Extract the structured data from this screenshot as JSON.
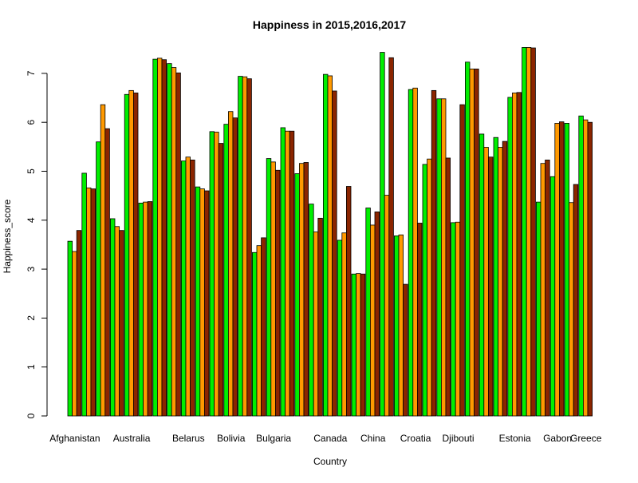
{
  "chart_data": {
    "type": "bar",
    "title": "Happiness in 2015,2016,2017",
    "xlabel": "Country",
    "ylabel": "Happiness_score",
    "ylim": [
      0,
      7.6
    ],
    "yticks": [
      0,
      1,
      2,
      3,
      4,
      5,
      6,
      7
    ],
    "legend": "none",
    "grid": false,
    "series_colors": [
      "#00ee00",
      "#ff9900",
      "#8b2500"
    ],
    "group_count": 37,
    "shown_category_labels": [
      {
        "group": 0,
        "label": "Afghanistan"
      },
      {
        "group": 4,
        "label": "Australia"
      },
      {
        "group": 8,
        "label": "Belarus"
      },
      {
        "group": 11,
        "label": "Bolivia"
      },
      {
        "group": 14,
        "label": "Bulgaria"
      },
      {
        "group": 18,
        "label": "Canada"
      },
      {
        "group": 21,
        "label": "China"
      },
      {
        "group": 24,
        "label": "Croatia"
      },
      {
        "group": 27,
        "label": "Djibouti"
      },
      {
        "group": 31,
        "label": "Estonia"
      },
      {
        "group": 34,
        "label": "Gabon"
      },
      {
        "group": 36,
        "label": "Greece"
      }
    ],
    "series": [
      {
        "values": [
          3.57,
          4.96,
          5.6,
          4.03,
          6.57,
          4.35,
          7.29,
          7.2,
          5.21,
          4.68,
          5.81,
          5.96,
          6.94,
          3.34,
          5.26,
          5.89,
          4.95,
          4.33,
          6.98,
          3.59,
          2.9,
          4.25,
          7.43,
          3.68,
          6.67,
          5.14,
          6.48,
          3.95,
          7.23,
          5.76,
          5.69,
          6.51,
          7.53,
          4.37,
          4.89,
          5.98,
          6.13
        ]
      },
      {
        "values": [
          3.36,
          4.66,
          6.36,
          3.87,
          6.65,
          4.37,
          7.31,
          7.12,
          5.29,
          4.64,
          5.8,
          6.22,
          6.93,
          3.48,
          5.19,
          5.82,
          5.16,
          3.76,
          6.95,
          3.74,
          2.91,
          3.9,
          4.51,
          3.7,
          6.7,
          5.25,
          6.48,
          3.96,
          7.09,
          5.49,
          5.49,
          6.6,
          7.53,
          5.16,
          5.98,
          4.36,
          6.05
        ]
      },
      {
        "values": [
          3.79,
          4.64,
          5.87,
          3.79,
          6.6,
          4.38,
          7.28,
          7.01,
          5.23,
          4.6,
          5.57,
          6.09,
          6.89,
          3.64,
          5.02,
          5.82,
          5.18,
          4.04,
          6.64,
          4.69,
          2.9,
          4.17,
          7.32,
          2.69,
          3.94,
          6.65,
          5.27,
          6.36,
          7.09,
          5.29,
          5.61,
          6.61,
          7.52,
          5.23,
          6.01,
          4.73,
          6.0
        ]
      }
    ]
  }
}
